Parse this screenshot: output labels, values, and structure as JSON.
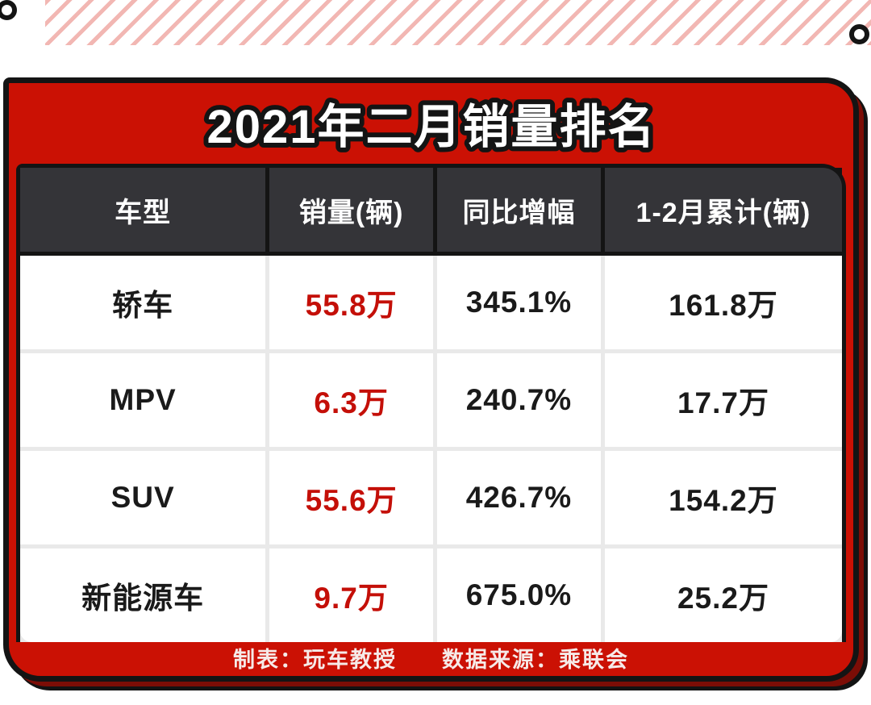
{
  "page": {
    "title": "2021年二月销量排名"
  },
  "colors": {
    "card_red": "#cb1104",
    "shadow_dark_red": "#7c0d06",
    "outline_black": "#141414",
    "header_dark": "#343438",
    "value_red": "#c40f08",
    "hatch_pink": "#f2b7b3",
    "footer_text": "#f6eae8",
    "grid_gray": "#e9e9e9"
  },
  "footer": {
    "made_by": "制表：玩车教授",
    "source": "数据来源：乘联会"
  },
  "chart_data": {
    "type": "table",
    "title": "2021年二月销量排名",
    "columns": [
      "车型",
      "销量(辆)",
      "同比增幅",
      "1-2月累计(辆)"
    ],
    "rows": [
      [
        "轿车",
        "55.8万",
        "345.1%",
        "161.8万"
      ],
      [
        "MPV",
        "6.3万",
        "240.7%",
        "17.7万"
      ],
      [
        "SUV",
        "55.6万",
        "426.7%",
        "154.2万"
      ],
      [
        "新能源车",
        "9.7万",
        "675.0%",
        "25.2万"
      ]
    ],
    "emphasis": "sales column values rendered in red",
    "legend_position": "none",
    "grid": true
  }
}
